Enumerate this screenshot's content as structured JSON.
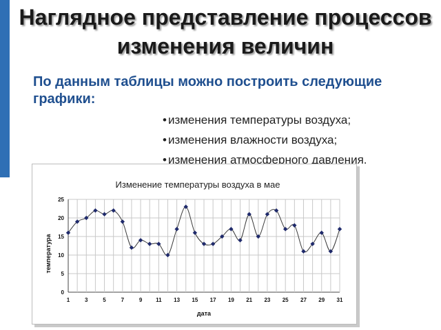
{
  "slide": {
    "title": "Наглядное представление процессов изменения величин",
    "subtitle": "По данным таблицы можно построить следующие графики:",
    "bullets": [
      "изменения температуры воздуха;",
      "изменения влажности воздуха;",
      "изменения атмосферного давления."
    ],
    "accent_color": "#2f6fb5"
  },
  "chart_data": {
    "type": "line",
    "title": "Изменение температуры воздуха в мае",
    "xlabel": "дата",
    "ylabel": "температура",
    "x": [
      1,
      2,
      3,
      4,
      5,
      6,
      7,
      8,
      9,
      10,
      11,
      12,
      13,
      14,
      15,
      16,
      17,
      18,
      19,
      20,
      21,
      22,
      23,
      24,
      25,
      26,
      27,
      28,
      29,
      30,
      31
    ],
    "values": [
      16,
      19,
      20,
      22,
      21,
      22,
      19,
      12,
      14,
      13,
      13,
      10,
      17,
      23,
      16,
      13,
      13,
      15,
      17,
      14,
      21,
      15,
      21,
      22,
      17,
      18,
      11,
      13,
      16,
      11,
      17
    ],
    "x_ticks": [
      1,
      3,
      5,
      7,
      9,
      11,
      13,
      15,
      17,
      19,
      21,
      23,
      25,
      27,
      29,
      31
    ],
    "y_ticks": [
      0,
      5,
      10,
      15,
      20,
      25
    ],
    "xlim": [
      1,
      31
    ],
    "ylim": [
      0,
      25
    ],
    "grid": true,
    "line_color": "#3a3a3a",
    "marker_color": "#1f2a6b"
  }
}
